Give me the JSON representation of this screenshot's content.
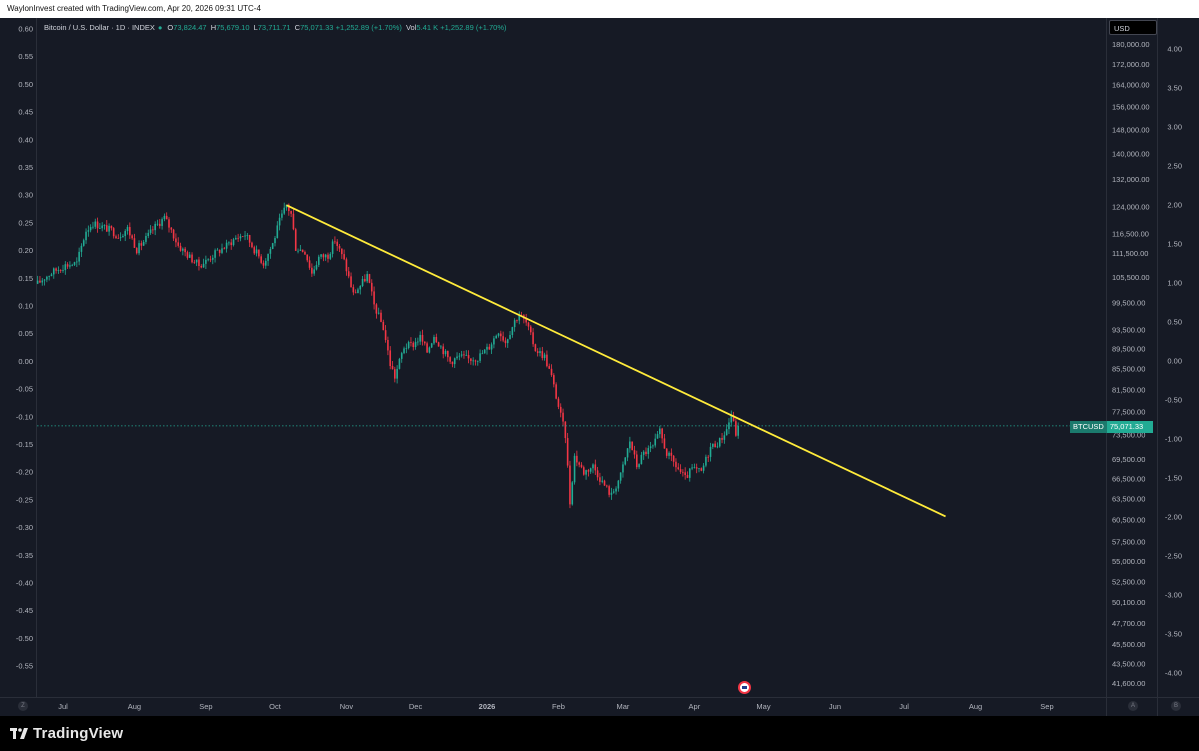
{
  "attribution": "WaylonInvest created with TradingView.com, Apr 20, 2026 09:31 UTC-4",
  "brand": "TradingView",
  "legend": {
    "symbol": "Bitcoin / U.S. Dollar · 1D · INDEX",
    "open_label": "O",
    "open": "73,824.47",
    "high_label": "H",
    "high": "75,679.10",
    "low_label": "L",
    "low": "73,711.71",
    "close_label": "C",
    "close": "75,071.33",
    "change": "+1,252.89 (+1.70%)",
    "vol_label": "Vol",
    "vol": "5.41 K",
    "vol_change": "+1,252.89 (+1.70%)"
  },
  "currency": "USD",
  "price_tag": {
    "symbol": "BTCUSD",
    "value": "75,071.33"
  },
  "buttons": {
    "left_corner": "Z",
    "auto": "A",
    "log": "B"
  },
  "colors": {
    "up": "#22ab94",
    "down": "#f23645",
    "trendline": "#ffeb3b",
    "background": "#161a25"
  },
  "chart_data": {
    "type": "candlestick",
    "title": "Bitcoin / U.S. Dollar · 1D · INDEX",
    "x_ticks": [
      "Jul",
      "Aug",
      "Sep",
      "Oct",
      "Nov",
      "Dec",
      "2026",
      "Feb",
      "Mar",
      "Apr",
      "May",
      "Jun",
      "Jul",
      "Aug",
      "Sep"
    ],
    "left_axis_ticks": [
      "0.60",
      "0.55",
      "0.50",
      "0.45",
      "0.40",
      "0.35",
      "0.30",
      "0.25",
      "0.20",
      "0.15",
      "0.10",
      "0.05",
      "0.00",
      "-0.05",
      "-0.10",
      "-0.15",
      "-0.20",
      "-0.25",
      "-0.30",
      "-0.35",
      "-0.40",
      "-0.45",
      "-0.50",
      "-0.55"
    ],
    "price_axis_ticks": [
      180000,
      172000,
      164000,
      156000,
      148000,
      140000,
      132000,
      124000,
      116500,
      111500,
      105500,
      99500,
      93500,
      89500,
      85500,
      81500,
      77500,
      73500,
      69500,
      66500,
      63500,
      60500,
      57500,
      55000,
      52500,
      50100,
      47700,
      45500,
      43500,
      41600
    ],
    "price_axis_labels": [
      "180,000.00",
      "172,000.00",
      "164,000.00",
      "156,000.00",
      "148,000.00",
      "140,000.00",
      "132,000.00",
      "124,000.00",
      "116,500.00",
      "111,500.00",
      "105,500.00",
      "99,500.00",
      "93,500.00",
      "89,500.00",
      "85,500.00",
      "81,500.00",
      "77,500.00",
      "73,500.00",
      "69,500.00",
      "66,500.00",
      "63,500.00",
      "60,500.00",
      "57,500.00",
      "55,000.00",
      "52,500.00",
      "50,100.00",
      "47,700.00",
      "45,500.00",
      "43,500.00",
      "41,600.00"
    ],
    "right_axis_ticks": [
      "4.00",
      "3.50",
      "3.00",
      "2.50",
      "2.00",
      "1.50",
      "1.00",
      "0.50",
      "0.00",
      "-0.50",
      "-1.00",
      "-1.50",
      "-2.00",
      "-2.50",
      "-3.00",
      "-3.50",
      "-4.00"
    ],
    "price_path": [
      [
        "2025-06-20",
        104000
      ],
      [
        "2025-06-23",
        105500
      ],
      [
        "2025-06-27",
        107000
      ],
      [
        "2025-07-02",
        108500
      ],
      [
        "2025-07-07",
        109000
      ],
      [
        "2025-07-11",
        117500
      ],
      [
        "2025-07-14",
        119500
      ],
      [
        "2025-07-18",
        118500
      ],
      [
        "2025-07-22",
        117500
      ],
      [
        "2025-07-25",
        116000
      ],
      [
        "2025-07-29",
        118000
      ],
      [
        "2025-08-02",
        112500
      ],
      [
        "2025-08-05",
        114500
      ],
      [
        "2025-08-10",
        118500
      ],
      [
        "2025-08-14",
        121000
      ],
      [
        "2025-08-17",
        117500
      ],
      [
        "2025-08-20",
        113500
      ],
      [
        "2025-08-25",
        110500
      ],
      [
        "2025-08-29",
        108500
      ],
      [
        "2025-09-01",
        109500
      ],
      [
        "2025-09-05",
        111500
      ],
      [
        "2025-09-10",
        113500
      ],
      [
        "2025-09-14",
        115500
      ],
      [
        "2025-09-18",
        116500
      ],
      [
        "2025-09-22",
        112500
      ],
      [
        "2025-09-26",
        109000
      ],
      [
        "2025-09-30",
        114000
      ],
      [
        "2025-10-03",
        120000
      ],
      [
        "2025-10-06",
        124500
      ],
      [
        "2025-10-08",
        122000
      ],
      [
        "2025-10-10",
        113000
      ],
      [
        "2025-10-14",
        112000
      ],
      [
        "2025-10-17",
        106500
      ],
      [
        "2025-10-20",
        110500
      ],
      [
        "2025-10-24",
        111000
      ],
      [
        "2025-10-27",
        115000
      ],
      [
        "2025-10-31",
        109500
      ],
      [
        "2025-11-04",
        101500
      ],
      [
        "2025-11-07",
        103500
      ],
      [
        "2025-11-10",
        106000
      ],
      [
        "2025-11-13",
        99000
      ],
      [
        "2025-11-17",
        94000
      ],
      [
        "2025-11-20",
        86500
      ],
      [
        "2025-11-22",
        84000
      ],
      [
        "2025-11-26",
        90000
      ],
      [
        "2025-11-30",
        90500
      ],
      [
        "2025-12-03",
        92000
      ],
      [
        "2025-12-06",
        89000
      ],
      [
        "2025-12-09",
        92500
      ],
      [
        "2025-12-12",
        90000
      ],
      [
        "2025-12-16",
        87000
      ],
      [
        "2025-12-20",
        88000
      ],
      [
        "2025-12-24",
        87500
      ],
      [
        "2025-12-28",
        87800
      ],
      [
        "2026-01-02",
        90000
      ],
      [
        "2026-01-06",
        93500
      ],
      [
        "2026-01-09",
        91000
      ],
      [
        "2026-01-13",
        95500
      ],
      [
        "2026-01-15",
        97000
      ],
      [
        "2026-01-18",
        95000
      ],
      [
        "2026-01-22",
        89500
      ],
      [
        "2026-01-26",
        88000
      ],
      [
        "2026-01-29",
        84000
      ],
      [
        "2026-02-01",
        78500
      ],
      [
        "2026-02-04",
        73500
      ],
      [
        "2026-02-06",
        63000
      ],
      [
        "2026-02-08",
        70000
      ],
      [
        "2026-02-12",
        67500
      ],
      [
        "2026-02-16",
        68500
      ],
      [
        "2026-02-20",
        66000
      ],
      [
        "2026-02-24",
        64000
      ],
      [
        "2026-02-28",
        67000
      ],
      [
        "2026-03-04",
        72500
      ],
      [
        "2026-03-07",
        68500
      ],
      [
        "2026-03-10",
        70500
      ],
      [
        "2026-03-14",
        71500
      ],
      [
        "2026-03-17",
        74000
      ],
      [
        "2026-03-20",
        70500
      ],
      [
        "2026-03-24",
        68500
      ],
      [
        "2026-03-28",
        66500
      ],
      [
        "2026-03-31",
        68000
      ],
      [
        "2026-04-04",
        67500
      ],
      [
        "2026-04-08",
        71500
      ],
      [
        "2026-04-12",
        72500
      ],
      [
        "2026-04-15",
        74500
      ],
      [
        "2026-04-17",
        77000
      ],
      [
        "2026-04-19",
        73800
      ],
      [
        "2026-04-20",
        75071
      ]
    ],
    "last_price": 75071.33,
    "trendline": {
      "start": [
        "2025-10-06",
        124500
      ],
      "end": [
        "2026-07-19",
        61000
      ]
    },
    "grid": false,
    "y_scale": "log"
  }
}
